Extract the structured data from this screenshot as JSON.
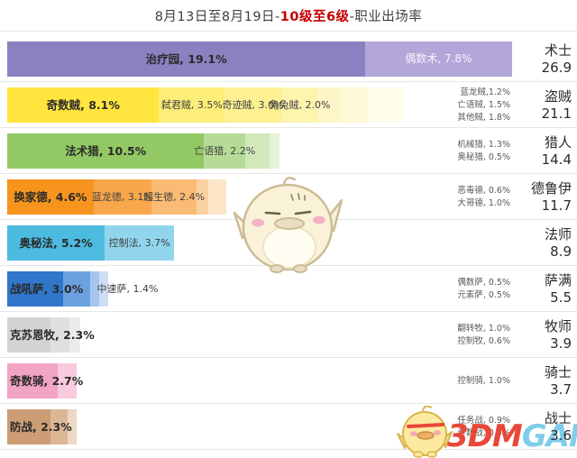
{
  "title": {
    "date_range": "8月13日至8月19日-",
    "rank_range": "10级至6级",
    "suffix": "-职业出场率"
  },
  "colors": {
    "highlight_red": "#c40000",
    "separator": "#e7e7e7",
    "side_label_text": "#595959"
  },
  "watermark": {
    "logo_3dm": "3DM",
    "logo_game": "GAME"
  },
  "chart_data": {
    "type": "bar",
    "orientation": "horizontal-stacked",
    "unit": "percent",
    "title": "8月13日至8月19日-10级至6级-职业出场率",
    "x_scale": "bar length proportional to deck play-rate percent, ~20.8px per 1%",
    "rows": [
      {
        "class_name": "术士",
        "total": "26.9",
        "segments": [
          {
            "name": "治疗园",
            "value": 19.1,
            "label": "治疗园, 19.1%",
            "color": "#8d80c1",
            "label_mode": "center",
            "label_variant": "primary"
          },
          {
            "name": "偶数术",
            "value": 7.8,
            "label": "偶数术, 7.8%",
            "color": "#b2a7d8",
            "label_mode": "center",
            "label_variant": "light"
          }
        ],
        "side_labels": []
      },
      {
        "class_name": "盗贼",
        "total": "21.1",
        "segments": [
          {
            "name": "奇数贼",
            "value": 8.1,
            "label": "奇数贼, 8.1%",
            "color": "#ffe53e",
            "label_mode": "center",
            "label_variant": "primary"
          },
          {
            "name": "弑君贼",
            "value": 3.5,
            "label": "弑君贼, 3.5%",
            "color": "#fcee79",
            "label_mode": "center",
            "label_variant": "secondary"
          },
          {
            "name": "奇迹贼",
            "value": 3.0,
            "label": "奇迹贼, 3.0%",
            "color": "#fdf194",
            "label_mode": "center",
            "label_variant": "secondary"
          },
          {
            "name": "兔兔贼",
            "value": 2.0,
            "label": "兔兔贼, 2.0%",
            "color": "#fdf4ae",
            "label_mode": "center",
            "label_variant": "secondary"
          },
          {
            "name": "蓝龙贼",
            "value": 1.2,
            "label": "",
            "color": "#fdf6c6",
            "label_mode": "none"
          },
          {
            "name": "亡语贼",
            "value": 1.5,
            "label": "",
            "color": "#fef9d8",
            "label_mode": "none"
          },
          {
            "name": "其他贼",
            "value": 1.8,
            "label": "",
            "color": "#fffdec",
            "label_mode": "none"
          }
        ],
        "side_labels": [
          "蓝龙贼,1.2%",
          "亡语贼, 1.5%",
          "其他贼, 1.8%"
        ]
      },
      {
        "class_name": "猎人",
        "total": "14.4",
        "segments": [
          {
            "name": "法术猎",
            "value": 10.5,
            "label": "法术猎, 10.5%",
            "color": "#92c964",
            "label_mode": "center",
            "label_variant": "primary"
          },
          {
            "name": "亡语猎",
            "value": 2.2,
            "label": "亡语猎, 2.2%",
            "color": "#b6db96",
            "label_mode": "center",
            "label_variant": "secondary"
          },
          {
            "name": "机械猎",
            "value": 1.3,
            "label": "",
            "color": "#d0e8ba",
            "label_mode": "none"
          },
          {
            "name": "奥秘猎",
            "value": 0.5,
            "label": "",
            "color": "#e4f2d7",
            "label_mode": "none"
          }
        ],
        "side_labels": [
          "机械猎, 1.3%",
          "奥秘猎, 0.5%"
        ]
      },
      {
        "class_name": "德鲁伊",
        "total": "11.7",
        "segments": [
          {
            "name": "换家德",
            "value": 4.6,
            "label": "换家德, 4.6%",
            "color": "#f7941e",
            "label_mode": "center",
            "label_variant": "primary"
          },
          {
            "name": "蓝龙德",
            "value": 3.1,
            "label": "蓝龙德, 3.1%",
            "color": "#f8a74b",
            "label_mode": "center",
            "label_variant": "secondary"
          },
          {
            "name": "超生德",
            "value": 2.4,
            "label": "超生德, 2.4%",
            "color": "#fabb74",
            "label_mode": "center",
            "label_variant": "secondary"
          },
          {
            "name": "恶毒德",
            "value": 0.6,
            "label": "",
            "color": "#fbd1a0",
            "label_mode": "none"
          },
          {
            "name": "大哥德",
            "value": 1.0,
            "label": "",
            "color": "#fde5c8",
            "label_mode": "none"
          }
        ],
        "side_labels": [
          "恶毒德, 0.6%",
          "大哥德, 1.0%"
        ]
      },
      {
        "class_name": "法师",
        "total": "8.9",
        "segments": [
          {
            "name": "奥秘法",
            "value": 5.2,
            "label": "奥秘法, 5.2%",
            "color": "#4cbbdf",
            "label_mode": "center",
            "label_variant": "primary"
          },
          {
            "name": "控制法",
            "value": 3.7,
            "label": "控制法, 3.7%",
            "color": "#90d5ec",
            "label_mode": "center",
            "label_variant": "secondary"
          }
        ],
        "side_labels": []
      },
      {
        "class_name": "萨满",
        "total": "5.5",
        "segments": [
          {
            "name": "战吼萨",
            "value": 3.0,
            "label": "战吼萨, 3.0%",
            "color": "#3076ca",
            "label_mode": "start",
            "label_variant": "primary"
          },
          {
            "name": "中速萨",
            "value": 1.4,
            "label": "中速萨, 1.4%",
            "color": "#6ba1de",
            "label_mode": "after",
            "label_variant": "secondary"
          },
          {
            "name": "偶数萨",
            "value": 0.5,
            "label": "",
            "color": "#a5c5ec",
            "label_mode": "none"
          },
          {
            "name": "元素萨",
            "value": 0.5,
            "label": "",
            "color": "#cddef5",
            "label_mode": "none"
          }
        ],
        "side_labels": [
          "偶数萨, 0.5%",
          "元素萨, 0.5%"
        ]
      },
      {
        "class_name": "牧师",
        "total": "3.9",
        "segments": [
          {
            "name": "克苏恩牧",
            "value": 2.3,
            "label": "克苏恩牧, 2.3%",
            "color": "#d4d4d4",
            "label_mode": "start",
            "label_variant": "primary"
          },
          {
            "name": "翻转牧",
            "value": 1.0,
            "label": "",
            "color": "#dfdfdf",
            "label_mode": "none"
          },
          {
            "name": "控制牧",
            "value": 0.6,
            "label": "",
            "color": "#ebebeb",
            "label_mode": "none"
          }
        ],
        "side_labels": [
          "翻转牧, 1.0%",
          "控制牧, 0.6%"
        ]
      },
      {
        "class_name": "骑士",
        "total": "3.7",
        "segments": [
          {
            "name": "奇数骑",
            "value": 2.7,
            "label": "奇数骑, 2.7%",
            "color": "#f2a4c4",
            "label_mode": "start",
            "label_variant": "primary"
          },
          {
            "name": "控制骑",
            "value": 1.0,
            "label": "",
            "color": "#f8cadd",
            "label_mode": "none"
          }
        ],
        "side_labels": [
          "控制骑, 1.0%"
        ]
      },
      {
        "class_name": "战士",
        "total": "3.6",
        "segments": [
          {
            "name": "防战",
            "value": 2.3,
            "label": "防战, 2.3%",
            "color": "#cd9d75",
            "label_mode": "start",
            "label_variant": "primary"
          },
          {
            "name": "任务战",
            "value": 0.9,
            "label": "",
            "color": "#dcb795",
            "label_mode": "none"
          },
          {
            "name": "奇数战",
            "value": 0.5,
            "label": "",
            "color": "#ecd8c3",
            "label_mode": "none"
          }
        ],
        "side_labels": [
          "任务战, 0.9%",
          "奇数战, 0.5%"
        ]
      }
    ]
  }
}
